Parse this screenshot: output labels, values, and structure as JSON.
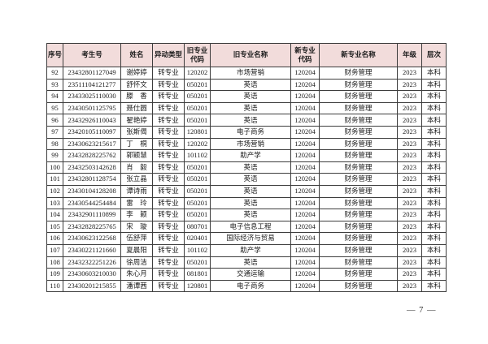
{
  "document": {
    "page_number": "— 7 —"
  },
  "colors": {
    "header_bg": "#f2dcdb",
    "border": "#3d3d3d"
  },
  "table": {
    "columns": [
      "序号",
      "考生号",
      "姓名",
      "异动类型",
      "旧专业代码",
      "旧专业名称",
      "新专业代码",
      "新专业名称",
      "年级",
      "层次"
    ],
    "rows": [
      [
        "92",
        "23432801127049",
        "谢婷婷",
        "转专业",
        "120202",
        "市场营销",
        "120204",
        "财务管理",
        "2023",
        "本科"
      ],
      [
        "93",
        "23511104121277",
        "舒怀文",
        "转专业",
        "050201",
        "英语",
        "120204",
        "财务管理",
        "2023",
        "本科"
      ],
      [
        "94",
        "23433025110030",
        "滕　香",
        "转专业",
        "050201",
        "英语",
        "120204",
        "财务管理",
        "2023",
        "本科"
      ],
      [
        "95",
        "23430501125795",
        "聂仕圆",
        "转专业",
        "050201",
        "英语",
        "120204",
        "财务管理",
        "2023",
        "本科"
      ],
      [
        "96",
        "23432926110043",
        "翟艳婷",
        "转专业",
        "050201",
        "英语",
        "120204",
        "财务管理",
        "2023",
        "本科"
      ],
      [
        "97",
        "23420105110097",
        "张斯偈",
        "转专业",
        "120801",
        "电子商务",
        "120204",
        "财务管理",
        "2023",
        "本科"
      ],
      [
        "98",
        "23430623215617",
        "丁　桐",
        "转专业",
        "120202",
        "市场营销",
        "120204",
        "财务管理",
        "2023",
        "本科"
      ],
      [
        "99",
        "23432828225762",
        "郭颖慧",
        "转专业",
        "101102",
        "助产学",
        "120204",
        "财务管理",
        "2023",
        "本科"
      ],
      [
        "100",
        "23432503142628",
        "肖　毅",
        "转专业",
        "050201",
        "英语",
        "120204",
        "财务管理",
        "2023",
        "本科"
      ],
      [
        "101",
        "23432801128754",
        "张立晶",
        "转专业",
        "050201",
        "英语",
        "120204",
        "财务管理",
        "2023",
        "本科"
      ],
      [
        "102",
        "23430104128208",
        "谭诗雨",
        "转专业",
        "050201",
        "英语",
        "120204",
        "财务管理",
        "2023",
        "本科"
      ],
      [
        "103",
        "23430544254484",
        "雷　玲",
        "转专业",
        "050201",
        "英语",
        "120204",
        "财务管理",
        "2023",
        "本科"
      ],
      [
        "104",
        "23432901110899",
        "李　颖",
        "转专业",
        "050201",
        "英语",
        "120204",
        "财务管理",
        "2023",
        "本科"
      ],
      [
        "105",
        "23432828225765",
        "宋　璇",
        "转专业",
        "080701",
        "电子信息工程",
        "120204",
        "财务管理",
        "2023",
        "本科"
      ],
      [
        "106",
        "23430623122568",
        "伍舒萍",
        "转专业",
        "020401",
        "国际经济与贸易",
        "120204",
        "财务管理",
        "2023",
        "本科"
      ],
      [
        "107",
        "23430221121660",
        "夏晨阳",
        "转专业",
        "101102",
        "助产学",
        "120204",
        "财务管理",
        "2023",
        "本科"
      ],
      [
        "108",
        "23432322251226",
        "徐周洁",
        "转专业",
        "050201",
        "英语",
        "120204",
        "财务管理",
        "2023",
        "本科"
      ],
      [
        "109",
        "23430603210030",
        "朱心月",
        "转专业",
        "081801",
        "交通运输",
        "120204",
        "财务管理",
        "2023",
        "本科"
      ],
      [
        "110",
        "23430201215855",
        "潘谭茜",
        "转专业",
        "120801",
        "电子商务",
        "120204",
        "财务管理",
        "2023",
        "本科"
      ]
    ]
  }
}
